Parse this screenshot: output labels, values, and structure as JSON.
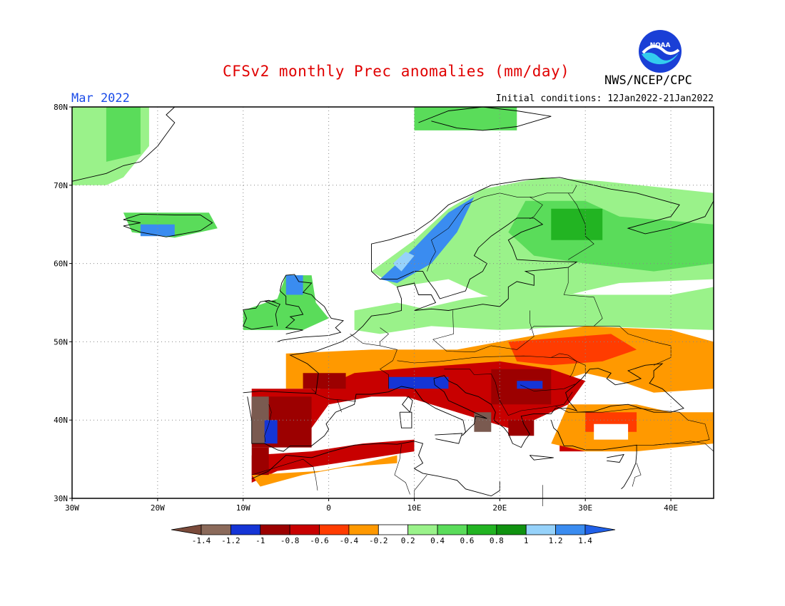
{
  "title": "CFSv2 monthly Prec anomalies (mm/day)",
  "agency": "NWS/NCEP/CPC",
  "logo_text": "NOAA",
  "period": "Mar 2022",
  "initial_conditions": "Initial conditions: 12Jan2022-21Jan2022",
  "map": {
    "lon_ticks": [
      "30W",
      "20W",
      "10W",
      "0",
      "10E",
      "20E",
      "30E",
      "40E"
    ],
    "lat_ticks": [
      "80N",
      "70N",
      "60N",
      "50N",
      "40N",
      "30N"
    ],
    "lon_range": [
      -30,
      45
    ],
    "lat_range": [
      30,
      80
    ],
    "gridlines": true
  },
  "colorbar": {
    "labels": [
      "-1.4",
      "-1.2",
      "-1",
      "-0.8",
      "-0.6",
      "-0.4",
      "-0.2",
      "0.2",
      "0.4",
      "0.6",
      "0.8",
      "1",
      "1.2",
      "1.4"
    ],
    "colors": [
      "#8b6a5a",
      "#7a5a50",
      "#1535d6",
      "#9c0000",
      "#c80000",
      "#ff3c00",
      "#ff9900",
      "#ffffff",
      "#9af28a",
      "#5adc5a",
      "#22b422",
      "#109210",
      "#96d2fa",
      "#3a8cf0",
      "#2060e8"
    ]
  }
}
